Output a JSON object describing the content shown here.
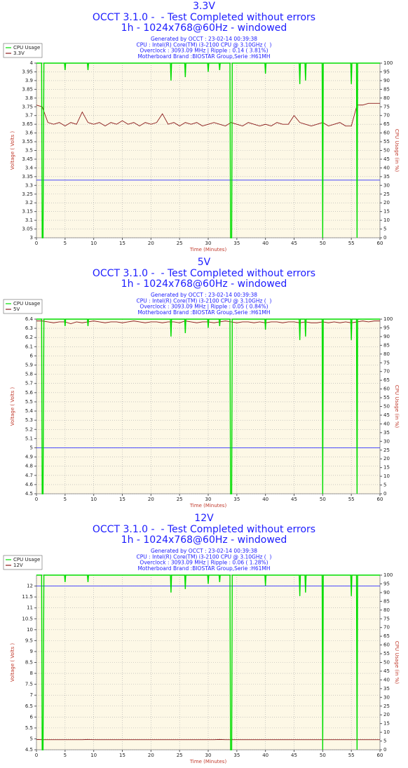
{
  "chart_data": [
    {
      "type": "line",
      "title": "3.3V",
      "subtitles": [
        "OCCT 3.1.0 -  - Test Completed without errors",
        "1h - 1024x768@60Hz - windowed"
      ],
      "info": [
        "Generated by OCCT : 23-02-14 00:39:38",
        "CPU : Intel(R) Core(TM) i3-2100 CPU @ 3.10GHz (  )",
        "Overclock : 3093.09 MHz | Ripple : 0.14 ( 3.81%)",
        "Motherboard Brand :BIOSTAR Group,Serie :H61MH"
      ],
      "xlabel": "Time (Minutes)",
      "ylabel": "Voltage ( Volts )",
      "y2label": "CPU Usage (in %)",
      "x": [
        0,
        1,
        2,
        3,
        4,
        5,
        6,
        7,
        8,
        9,
        10,
        11,
        12,
        13,
        14,
        15,
        16,
        17,
        18,
        19,
        20,
        21,
        22,
        23,
        24,
        25,
        26,
        27,
        28,
        29,
        30,
        31,
        32,
        33,
        34,
        35,
        36,
        37,
        38,
        39,
        40,
        41,
        42,
        43,
        44,
        45,
        46,
        47,
        48,
        49,
        50,
        51,
        52,
        53,
        54,
        55,
        56,
        57,
        58,
        59,
        60
      ],
      "xlim": [
        0,
        60
      ],
      "xticks": [
        0,
        5,
        10,
        15,
        20,
        25,
        30,
        35,
        40,
        45,
        50,
        55,
        60
      ],
      "ylim": [
        3,
        4
      ],
      "yticks": [
        3,
        3.05,
        3.1,
        3.15,
        3.2,
        3.25,
        3.3,
        3.35,
        3.4,
        3.45,
        3.5,
        3.55,
        3.6,
        3.65,
        3.7,
        3.75,
        3.8,
        3.85,
        3.9,
        3.95,
        4
      ],
      "y2lim": [
        0,
        100
      ],
      "y2ticks": [
        0,
        5,
        10,
        15,
        20,
        25,
        30,
        35,
        40,
        45,
        50,
        55,
        60,
        65,
        70,
        75,
        80,
        85,
        90,
        95,
        100
      ],
      "grid": true,
      "legend": "upper left",
      "series": [
        {
          "name": "CPU Usage",
          "color": "#00dd00",
          "axis": "y2",
          "x": [
            0,
            0.9,
            1,
            1.15,
            1.3,
            4.9,
            5,
            5.1,
            8.9,
            9,
            9.1,
            23.4,
            23.5,
            23.6,
            25.9,
            26,
            26.1,
            29.9,
            30,
            30.1,
            31.9,
            32,
            32.1,
            33.8,
            33.9,
            34.1,
            34.2,
            39.9,
            40,
            40.1,
            45.9,
            46,
            46.1,
            46.9,
            47,
            47.1,
            49.9,
            50,
            50.1,
            54.9,
            55,
            55.1,
            55.9,
            56,
            56.1,
            60
          ],
          "values": [
            100,
            100,
            0,
            0,
            100,
            100,
            96,
            100,
            100,
            96,
            100,
            100,
            90,
            100,
            100,
            92,
            100,
            100,
            95,
            100,
            100,
            96,
            100,
            100,
            0,
            0,
            100,
            100,
            94,
            100,
            100,
            88,
            100,
            100,
            90,
            100,
            100,
            0,
            100,
            100,
            88,
            100,
            100,
            0,
            100,
            100
          ]
        },
        {
          "name": "3.3V",
          "color": "#8b1a1a",
          "values": [
            3.76,
            3.75,
            3.66,
            3.65,
            3.66,
            3.64,
            3.66,
            3.65,
            3.72,
            3.66,
            3.65,
            3.66,
            3.64,
            3.66,
            3.65,
            3.67,
            3.65,
            3.66,
            3.64,
            3.66,
            3.65,
            3.66,
            3.71,
            3.65,
            3.66,
            3.64,
            3.66,
            3.65,
            3.66,
            3.64,
            3.65,
            3.66,
            3.65,
            3.64,
            3.66,
            3.65,
            3.64,
            3.66,
            3.65,
            3.64,
            3.65,
            3.64,
            3.66,
            3.65,
            3.65,
            3.7,
            3.66,
            3.65,
            3.64,
            3.65,
            3.66,
            3.64,
            3.65,
            3.66,
            3.64,
            3.64,
            3.76,
            3.76,
            3.77,
            3.77,
            3.77
          ]
        },
        {
          "color": "#3333ff",
          "x": [
            0,
            60
          ],
          "values": [
            3.33,
            3.33
          ]
        }
      ]
    },
    {
      "type": "line",
      "title": "5V",
      "subtitles": [
        "OCCT 3.1.0 -  - Test Completed without errors",
        "1h - 1024x768@60Hz - windowed"
      ],
      "info": [
        "Generated by OCCT : 23-02-14 00:39:38",
        "CPU : Intel(R) Core(TM) i3-2100 CPU @ 3.10GHz (  )",
        "Overclock : 3093.09 MHz | Ripple : 0.05 ( 0.84%)",
        "Motherboard Brand :BIOSTAR Group,Serie :H61MH"
      ],
      "xlabel": "Time (Minutes)",
      "ylabel": "Voltage ( Volts )",
      "y2label": "CPU Usage (in %)",
      "x": [
        0,
        1,
        2,
        3,
        4,
        5,
        6,
        7,
        8,
        9,
        10,
        11,
        12,
        13,
        14,
        15,
        16,
        17,
        18,
        19,
        20,
        21,
        22,
        23,
        24,
        25,
        26,
        27,
        28,
        29,
        30,
        31,
        32,
        33,
        34,
        35,
        36,
        37,
        38,
        39,
        40,
        41,
        42,
        43,
        44,
        45,
        46,
        47,
        48,
        49,
        50,
        51,
        52,
        53,
        54,
        55,
        56,
        57,
        58,
        59,
        60
      ],
      "xlim": [
        0,
        60
      ],
      "xticks": [
        0,
        5,
        10,
        15,
        20,
        25,
        30,
        35,
        40,
        45,
        50,
        55,
        60
      ],
      "ylim": [
        4.5,
        6.4
      ],
      "yticks": [
        4.5,
        4.6,
        4.7,
        4.8,
        4.9,
        5,
        5.1,
        5.2,
        5.3,
        5.4,
        5.5,
        5.6,
        5.7,
        5.8,
        5.9,
        6,
        6.1,
        6.2,
        6.3,
        6.4
      ],
      "y2lim": [
        0,
        100
      ],
      "y2ticks": [
        0,
        5,
        10,
        15,
        20,
        25,
        30,
        35,
        40,
        45,
        50,
        55,
        60,
        65,
        70,
        75,
        80,
        85,
        90,
        95,
        100
      ],
      "grid": true,
      "legend": "upper left",
      "series": [
        {
          "name": "CPU Usage",
          "color": "#00dd00",
          "axis": "y2",
          "x": [
            0,
            0.9,
            1,
            1.15,
            1.3,
            4.9,
            5,
            5.1,
            8.9,
            9,
            9.1,
            23.4,
            23.5,
            23.6,
            25.9,
            26,
            26.1,
            29.9,
            30,
            30.1,
            31.9,
            32,
            32.1,
            33.8,
            33.9,
            34.1,
            34.2,
            39.9,
            40,
            40.1,
            45.9,
            46,
            46.1,
            46.9,
            47,
            47.1,
            49.9,
            50,
            50.1,
            54.9,
            55,
            55.1,
            55.9,
            56,
            56.1,
            60
          ],
          "values": [
            100,
            100,
            0,
            0,
            100,
            100,
            96,
            100,
            100,
            96,
            100,
            100,
            90,
            100,
            100,
            92,
            100,
            100,
            95,
            100,
            100,
            96,
            100,
            100,
            0,
            0,
            100,
            100,
            94,
            100,
            100,
            88,
            100,
            100,
            90,
            100,
            100,
            0,
            100,
            100,
            88,
            100,
            100,
            0,
            100,
            100
          ]
        },
        {
          "name": "5V",
          "color": "#8b1a1a",
          "values": [
            6.38,
            6.38,
            6.37,
            6.36,
            6.37,
            6.37,
            6.35,
            6.37,
            6.36,
            6.37,
            6.38,
            6.37,
            6.36,
            6.37,
            6.37,
            6.36,
            6.37,
            6.38,
            6.37,
            6.36,
            6.37,
            6.37,
            6.36,
            6.37,
            6.37,
            6.36,
            6.38,
            6.37,
            6.36,
            6.37,
            6.37,
            6.36,
            6.37,
            6.38,
            6.37,
            6.36,
            6.37,
            6.37,
            6.36,
            6.37,
            6.36,
            6.37,
            6.37,
            6.36,
            6.37,
            6.37,
            6.36,
            6.37,
            6.36,
            6.36,
            6.37,
            6.36,
            6.37,
            6.36,
            6.37,
            6.36,
            6.37,
            6.38,
            6.37,
            6.38,
            6.38
          ]
        },
        {
          "color": "#3333ff",
          "x": [
            0,
            60
          ],
          "values": [
            5,
            5
          ]
        }
      ]
    },
    {
      "type": "line",
      "title": "12V",
      "subtitles": [
        "OCCT 3.1.0 -  - Test Completed without errors",
        "1h - 1024x768@60Hz - windowed"
      ],
      "info": [
        "Generated by OCCT : 23-02-14 00:39:38",
        "CPU : Intel(R) Core(TM) i3-2100 CPU @ 3.10GHz (  )",
        "Overclock : 3093.09 MHz | Ripple : 0.06 ( 1.28%)",
        "Motherboard Brand :BIOSTAR Group,Serie :H61MH"
      ],
      "xlabel": "Time (Minutes)",
      "ylabel": "Voltage ( Volts )",
      "y2label": "CPU Usage (in %)",
      "x": [
        0,
        1,
        2,
        3,
        4,
        5,
        6,
        7,
        8,
        9,
        10,
        11,
        12,
        13,
        14,
        15,
        16,
        17,
        18,
        19,
        20,
        21,
        22,
        23,
        24,
        25,
        26,
        27,
        28,
        29,
        30,
        31,
        32,
        33,
        34,
        35,
        36,
        37,
        38,
        39,
        40,
        41,
        42,
        43,
        44,
        45,
        46,
        47,
        48,
        49,
        50,
        51,
        52,
        53,
        54,
        55,
        56,
        57,
        58,
        59,
        60
      ],
      "xlim": [
        0,
        60
      ],
      "xticks": [
        0,
        5,
        10,
        15,
        20,
        25,
        30,
        35,
        40,
        45,
        50,
        55,
        60
      ],
      "ylim": [
        4.5,
        12.5
      ],
      "yticks": [
        4.5,
        5,
        5.5,
        6,
        6.5,
        7,
        7.5,
        8,
        8.5,
        9,
        9.5,
        10,
        10.5,
        11,
        11.5,
        12
      ],
      "y2lim": [
        0,
        100
      ],
      "y2ticks": [
        0,
        5,
        10,
        15,
        20,
        25,
        30,
        35,
        40,
        45,
        50,
        55,
        60,
        65,
        70,
        75,
        80,
        85,
        90,
        95,
        100
      ],
      "grid": true,
      "legend": "upper left",
      "series": [
        {
          "name": "CPU Usage",
          "color": "#00dd00",
          "axis": "y2",
          "x": [
            0,
            0.9,
            1,
            1.15,
            1.3,
            4.9,
            5,
            5.1,
            8.9,
            9,
            9.1,
            23.4,
            23.5,
            23.6,
            25.9,
            26,
            26.1,
            29.9,
            30,
            30.1,
            31.9,
            32,
            32.1,
            33.8,
            33.9,
            34.1,
            34.2,
            39.9,
            40,
            40.1,
            45.9,
            46,
            46.1,
            46.9,
            47,
            47.1,
            49.9,
            50,
            50.1,
            54.9,
            55,
            55.1,
            55.9,
            56,
            56.1,
            60
          ],
          "values": [
            100,
            100,
            0,
            0,
            100,
            100,
            96,
            100,
            100,
            96,
            100,
            100,
            90,
            100,
            100,
            92,
            100,
            100,
            95,
            100,
            100,
            96,
            100,
            100,
            0,
            0,
            100,
            100,
            94,
            100,
            100,
            88,
            100,
            100,
            90,
            100,
            100,
            0,
            100,
            100,
            88,
            100,
            100,
            0,
            100,
            100
          ]
        },
        {
          "name": "12V",
          "color": "#8b1a1a",
          "values": [
            4.97,
            4.96,
            4.96,
            4.96,
            4.96,
            4.96,
            4.96,
            4.96,
            4.96,
            4.97,
            4.96,
            4.96,
            4.96,
            4.96,
            4.96,
            4.96,
            4.96,
            4.96,
            4.96,
            4.96,
            4.96,
            4.96,
            4.96,
            4.96,
            4.96,
            4.96,
            4.96,
            4.96,
            4.96,
            4.96,
            4.96,
            4.96,
            4.97,
            4.96,
            4.96,
            4.96,
            4.96,
            4.96,
            4.96,
            4.96,
            4.96,
            4.96,
            4.96,
            4.96,
            4.96,
            4.96,
            4.96,
            4.96,
            4.96,
            4.96,
            4.96,
            4.96,
            4.96,
            4.96,
            4.96,
            4.96,
            4.96,
            4.96,
            4.96,
            4.96,
            4.96
          ]
        },
        {
          "color": "#3333ff",
          "x": [
            0,
            60
          ],
          "values": [
            12,
            12
          ]
        }
      ]
    }
  ]
}
